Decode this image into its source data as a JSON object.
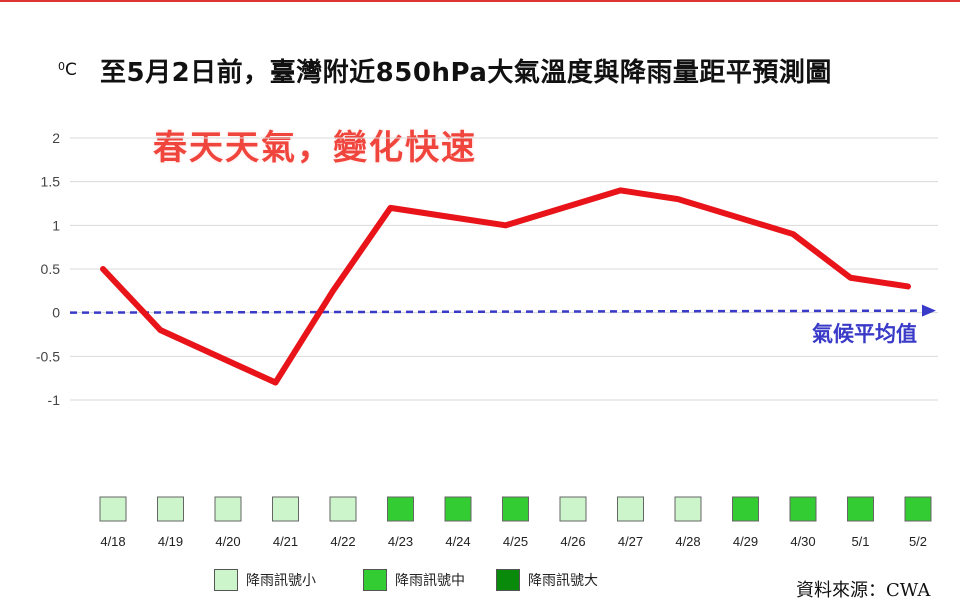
{
  "header": {
    "unit_label": "C",
    "unit_sup": "0",
    "title": "至5月2日前，臺灣附近850hPa大氣溫度與降雨量距平預測圖",
    "banner": "春天天氣，變化快速"
  },
  "climatology_label": "氣候平均值",
  "source": "資料來源：CWA",
  "colors": {
    "temperature_line": "#e8141a",
    "climatology_line": "#3a3ac8",
    "rain_small": "#ccf5cc",
    "rain_medium": "#33cc33",
    "rain_large": "#0a8a0a"
  },
  "legend": [
    {
      "label": "降雨訊號小",
      "level": "small"
    },
    {
      "label": "降雨訊號中",
      "level": "medium"
    },
    {
      "label": "降雨訊號大",
      "level": "large"
    }
  ],
  "chart_data": {
    "type": "line",
    "title": "至5月2日前，臺灣附近850hPa大氣溫度與降雨量距平預測圖",
    "ylabel": "°C",
    "xlabel": "",
    "ylim": [
      -1,
      2
    ],
    "yticks": [
      "2",
      "1.5",
      "1",
      "0.5",
      "0",
      "-0.5",
      "-1"
    ],
    "grid": true,
    "categories": [
      "4/18",
      "4/19",
      "4/20",
      "4/21",
      "4/22",
      "4/23",
      "4/24",
      "4/25",
      "4/26",
      "4/27",
      "4/28",
      "4/29",
      "4/30",
      "5/1",
      "5/2"
    ],
    "series": [
      {
        "values": [
          0.5,
          -0.2,
          -0.5,
          -0.8,
          0.25,
          1.2,
          1.1,
          1.0,
          1.2,
          1.4,
          1.3,
          1.1,
          0.9,
          0.4,
          0.3
        ]
      }
    ],
    "reference_line": {
      "value": 0,
      "label": "氣候平均值",
      "style": "dashed-arrow"
    },
    "rain_signal": [
      "small",
      "small",
      "small",
      "small",
      "small",
      "medium",
      "medium",
      "medium",
      "small",
      "small",
      "small",
      "medium",
      "medium",
      "medium",
      "medium"
    ]
  }
}
